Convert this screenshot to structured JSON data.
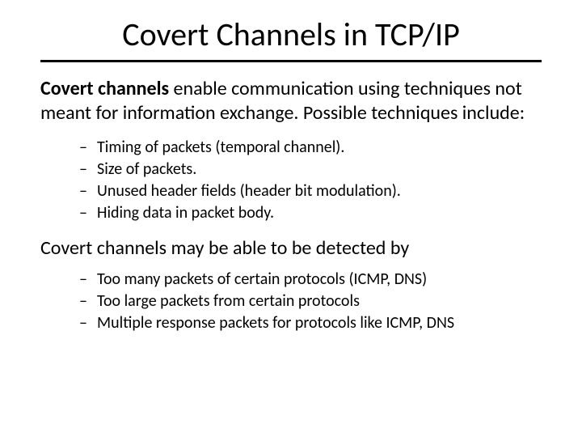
{
  "title": "Covert Channels in TCP/IP",
  "intro": {
    "bold": "Covert channels",
    "rest": " enable communication using techniques not meant for information exchange. Possible techniques include:"
  },
  "techniques": [
    "Timing of packets (temporal channel).",
    "Size of packets.",
    "Unused header fields (header bit modulation).",
    "Hiding data in packet body."
  ],
  "detection_intro": "Covert channels may be able to be detected by",
  "detection": [
    "Too many packets of certain protocols (ICMP, DNS)",
    "Too large packets from certain protocols",
    "Multiple response packets for protocols like ICMP, DNS"
  ],
  "style": {
    "background_color": "#ffffff",
    "text_color": "#000000",
    "rule_color": "#000000",
    "title_fontsize": 40,
    "body_fontsize": 24,
    "bullet_fontsize": 20
  }
}
